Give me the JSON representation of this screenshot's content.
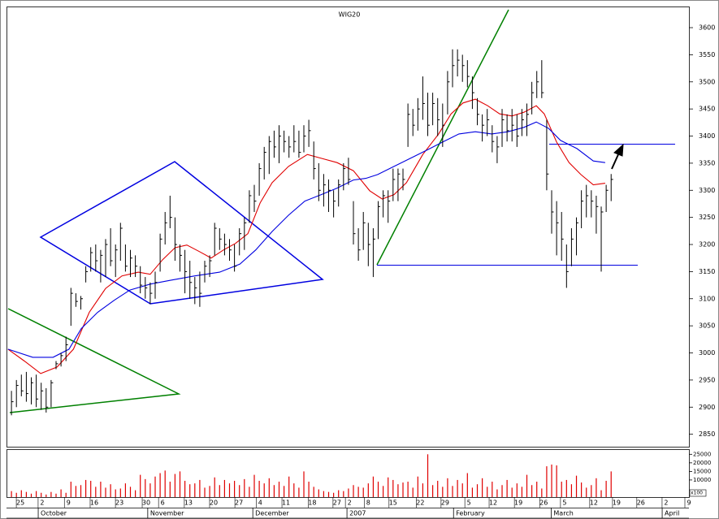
{
  "chart_data": {
    "type": "hlc",
    "title": "WIG20",
    "x": [
      0,
      1,
      2,
      3,
      4,
      5,
      6,
      7,
      8,
      9,
      10,
      11,
      12,
      13,
      14,
      15,
      16,
      17,
      18,
      19,
      20,
      21,
      22,
      23,
      24,
      25,
      26,
      27,
      28,
      29,
      30,
      31,
      32,
      33,
      34,
      35,
      36,
      37,
      38,
      39,
      40,
      41,
      42,
      43,
      44,
      45,
      46,
      47,
      48,
      49,
      50,
      51,
      52,
      53,
      54,
      55,
      56,
      57,
      58,
      59,
      60,
      61,
      62,
      63,
      64,
      65,
      66,
      67,
      68,
      69,
      70,
      71,
      72,
      73,
      74,
      75,
      76,
      77,
      78,
      79,
      80,
      81,
      82,
      83,
      84,
      85,
      86,
      87,
      88,
      89,
      90,
      91,
      92,
      93,
      94,
      95,
      96,
      97,
      98,
      99,
      100,
      101,
      102,
      103,
      104,
      105,
      106,
      107,
      108,
      109,
      110,
      111,
      112,
      113,
      114,
      115,
      116,
      117,
      118,
      119,
      120,
      121
    ],
    "high": [
      2930,
      2950,
      2960,
      2965,
      2955,
      2960,
      2945,
      2935,
      2950,
      2985,
      3000,
      3030,
      3120,
      3110,
      3105,
      3160,
      3195,
      3200,
      3190,
      3210,
      3230,
      3200,
      3240,
      3200,
      3190,
      3180,
      3160,
      3140,
      3130,
      3150,
      3220,
      3260,
      3290,
      3250,
      3200,
      3190,
      3170,
      3140,
      3150,
      3170,
      3180,
      3240,
      3230,
      3220,
      3210,
      3200,
      3230,
      3250,
      3300,
      3310,
      3350,
      3380,
      3400,
      3410,
      3420,
      3410,
      3400,
      3420,
      3410,
      3420,
      3430,
      3390,
      3350,
      3330,
      3320,
      3300,
      3320,
      3350,
      3360,
      3280,
      3230,
      3260,
      3240,
      3230,
      3280,
      3300,
      3300,
      3340,
      3340,
      3340,
      3460,
      3450,
      3470,
      3510,
      3480,
      3480,
      3470,
      3460,
      3520,
      3560,
      3560,
      3550,
      3540,
      3510,
      3470,
      3440,
      3450,
      3420,
      3400,
      3450,
      3440,
      3450,
      3440,
      3450,
      3460,
      3500,
      3520,
      3540,
      3430,
      3300,
      3280,
      3260,
      3200,
      3230,
      3250,
      3300,
      3310,
      3300,
      3290,
      3270,
      3310,
      3330
    ],
    "low": [
      2885,
      2900,
      2920,
      2910,
      2905,
      2900,
      2895,
      2890,
      2900,
      2970,
      2975,
      2985,
      3050,
      3085,
      3080,
      3130,
      3150,
      3150,
      3130,
      3140,
      3160,
      3140,
      3170,
      3150,
      3140,
      3140,
      3110,
      3100,
      3090,
      3100,
      3150,
      3200,
      3230,
      3170,
      3150,
      3110,
      3100,
      3090,
      3085,
      3130,
      3140,
      3180,
      3190,
      3180,
      3170,
      3150,
      3180,
      3190,
      3240,
      3260,
      3290,
      3320,
      3330,
      3360,
      3350,
      3370,
      3360,
      3370,
      3360,
      3370,
      3380,
      3320,
      3280,
      3270,
      3260,
      3250,
      3270,
      3300,
      3310,
      3200,
      3170,
      3190,
      3160,
      3140,
      3210,
      3250,
      3240,
      3280,
      3280,
      3300,
      3380,
      3400,
      3410,
      3430,
      3400,
      3420,
      3400,
      3380,
      3440,
      3490,
      3510,
      3500,
      3490,
      3450,
      3420,
      3390,
      3400,
      3370,
      3350,
      3380,
      3390,
      3390,
      3380,
      3400,
      3400,
      3440,
      3470,
      3470,
      3300,
      3220,
      3180,
      3170,
      3120,
      3160,
      3180,
      3230,
      3250,
      3250,
      3220,
      3150,
      3260,
      3280
    ],
    "close": [
      2910,
      2940,
      2930,
      2925,
      2945,
      2915,
      2930,
      2900,
      2945,
      2980,
      2995,
      3015,
      3110,
      3095,
      3100,
      3150,
      3185,
      3170,
      3180,
      3200,
      3170,
      3190,
      3230,
      3160,
      3175,
      3160,
      3125,
      3120,
      3110,
      3130,
      3210,
      3240,
      3250,
      3200,
      3180,
      3150,
      3130,
      3120,
      3110,
      3160,
      3170,
      3230,
      3210,
      3200,
      3190,
      3160,
      3220,
      3240,
      3290,
      3280,
      3340,
      3370,
      3390,
      3380,
      3400,
      3390,
      3380,
      3390,
      3370,
      3400,
      3410,
      3340,
      3300,
      3310,
      3300,
      3280,
      3310,
      3340,
      3320,
      3220,
      3190,
      3240,
      3200,
      3210,
      3270,
      3290,
      3280,
      3320,
      3330,
      3320,
      3440,
      3420,
      3450,
      3460,
      3420,
      3460,
      3430,
      3420,
      3500,
      3530,
      3540,
      3530,
      3510,
      3480,
      3440,
      3420,
      3430,
      3390,
      3380,
      3430,
      3410,
      3420,
      3400,
      3430,
      3440,
      3480,
      3500,
      3480,
      3330,
      3260,
      3240,
      3210,
      3150,
      3210,
      3240,
      3280,
      3290,
      3280,
      3270,
      3260,
      3300,
      3320
    ],
    "color": "#000000",
    "lines": [
      {
        "color": "#e00000",
        "x": [
          -0.7,
          2.6,
          5.9,
          9.2,
          12.5,
          15.7,
          19,
          22.3,
          25.6,
          28,
          30.5,
          33,
          35.4,
          37.9,
          40.3,
          42.8,
          45.2,
          47.7,
          50.2,
          52.6,
          55.9,
          59.7,
          62.5,
          65.7,
          69,
          72.3,
          74.8,
          77.2,
          79.7,
          83,
          86.2,
          88.7,
          91.1,
          93.6,
          96.1,
          98.5,
          101,
          103.4,
          105.9,
          107.5,
          110,
          112.5,
          114.9,
          117.4,
          119.8
        ],
        "values": [
          3007,
          2985,
          2962,
          2974,
          3007,
          3075,
          3119,
          3142,
          3149,
          3145,
          3172,
          3194,
          3199,
          3187,
          3175,
          3190,
          3202,
          3220,
          3277,
          3314,
          3344,
          3366,
          3359,
          3351,
          3336,
          3299,
          3284,
          3292,
          3314,
          3366,
          3404,
          3441,
          3461,
          3468,
          3456,
          3441,
          3437,
          3444,
          3456,
          3441,
          3389,
          3351,
          3329,
          3310,
          3313
        ]
      },
      {
        "color": "#0000e0",
        "x": [
          -0.7,
          4.3,
          8.4,
          11.6,
          14.1,
          17.4,
          20.7,
          23.9,
          28,
          32.1,
          37,
          42,
          46.1,
          49.3,
          52.6,
          55.9,
          59.2,
          62.5,
          65.7,
          69,
          71.5,
          73.9,
          77.2,
          80.5,
          83.8,
          87,
          90.3,
          93.6,
          96.9,
          100.2,
          103.4,
          105.9,
          108.4,
          110.8,
          114.1,
          117.4,
          119.8
        ],
        "values": [
          3007,
          2992,
          2992,
          3007,
          3045,
          3075,
          3097,
          3116,
          3127,
          3134,
          3142,
          3149,
          3164,
          3190,
          3224,
          3254,
          3280,
          3292,
          3304,
          3319,
          3322,
          3329,
          3344,
          3359,
          3374,
          3389,
          3404,
          3408,
          3404,
          3408,
          3416,
          3426,
          3414,
          3392,
          3377,
          3354,
          3351
        ]
      }
    ],
    "xlim": [
      -1,
      136.7
    ],
    "ylim": [
      2827,
      3639
    ],
    "yticks": [
      2850,
      2900,
      2950,
      3000,
      3050,
      3100,
      3150,
      3200,
      3250,
      3300,
      3350,
      3400,
      3450,
      3500,
      3550,
      3600
    ],
    "xticks": [
      {
        "value": 1.8,
        "label": "25"
      },
      {
        "value": 6.2,
        "label": "2"
      },
      {
        "value": 11.5,
        "label": "9"
      },
      {
        "value": 16.7,
        "label": "16"
      },
      {
        "value": 21.8,
        "label": "23"
      },
      {
        "value": 27.2,
        "label": "30"
      },
      {
        "value": 30.5,
        "label": "6"
      },
      {
        "value": 35.7,
        "label": "13"
      },
      {
        "value": 40.8,
        "label": "20"
      },
      {
        "value": 45.9,
        "label": "27"
      },
      {
        "value": 50.2,
        "label": "4"
      },
      {
        "value": 55.4,
        "label": "11"
      },
      {
        "value": 60.7,
        "label": "18"
      },
      {
        "value": 65.7,
        "label": "27"
      },
      {
        "value": 68.2,
        "label": "2"
      },
      {
        "value": 72,
        "label": "8"
      },
      {
        "value": 77,
        "label": "15"
      },
      {
        "value": 82.5,
        "label": "22"
      },
      {
        "value": 87.5,
        "label": "29"
      },
      {
        "value": 92.3,
        "label": "5"
      },
      {
        "value": 97.2,
        "label": "12"
      },
      {
        "value": 102.3,
        "label": "19"
      },
      {
        "value": 107.4,
        "label": "26"
      },
      {
        "value": 111.6,
        "label": "5"
      },
      {
        "value": 117.5,
        "label": "12"
      },
      {
        "value": 122.1,
        "label": "19"
      },
      {
        "value": 127,
        "label": "26"
      },
      {
        "value": 132.1,
        "label": "2"
      },
      {
        "value": 136.7,
        "label": "9"
      }
    ],
    "month_ticks": [
      {
        "value": 5.4,
        "label": "October"
      },
      {
        "value": 27.5,
        "label": "November"
      },
      {
        "value": 48.7,
        "label": "December"
      },
      {
        "value": 67.7,
        "label": "2007"
      },
      {
        "value": 89.2,
        "label": "February"
      },
      {
        "value": 108.9,
        "label": "March"
      },
      {
        "value": 131.3,
        "label": "April"
      }
    ],
    "volume": {
      "color": "#e00000",
      "unit": "x100",
      "ylim": [
        0,
        28000
      ],
      "yticks": [
        10000,
        15000,
        20000,
        25000
      ],
      "values": [
        3500,
        2500,
        4000,
        3000,
        2000,
        3500,
        2500,
        1500,
        3000,
        2000,
        4500,
        2500,
        9000,
        6500,
        7000,
        10000,
        9500,
        6000,
        9000,
        5500,
        7500,
        4500,
        5000,
        8000,
        6000,
        4000,
        13000,
        10500,
        8000,
        12000,
        14000,
        15500,
        9000,
        13500,
        15000,
        9500,
        7500,
        8000,
        10000,
        5500,
        6500,
        11500,
        7000,
        10000,
        8000,
        9500,
        7000,
        10500,
        6000,
        13000,
        9500,
        8000,
        11000,
        7000,
        9000,
        6500,
        12000,
        8000,
        5500,
        15000,
        9000,
        6000,
        4500,
        3500,
        3000,
        2500,
        4000,
        3500,
        5000,
        7000,
        6000,
        5500,
        8000,
        12000,
        9000,
        6500,
        11500,
        10000,
        7500,
        8500,
        9000,
        5500,
        12000,
        8000,
        25000,
        7000,
        9500,
        6000,
        11000,
        6500,
        10000,
        8000,
        14000,
        5500,
        7500,
        11000,
        6000,
        9000,
        4500,
        7000,
        10000,
        5500,
        8000,
        6000,
        13000,
        7000,
        9000,
        5000,
        18000,
        19000,
        18500,
        9000,
        10000,
        7500,
        12500,
        8500,
        5500,
        7000,
        11000,
        4000,
        9500,
        15000
      ]
    }
  }
}
